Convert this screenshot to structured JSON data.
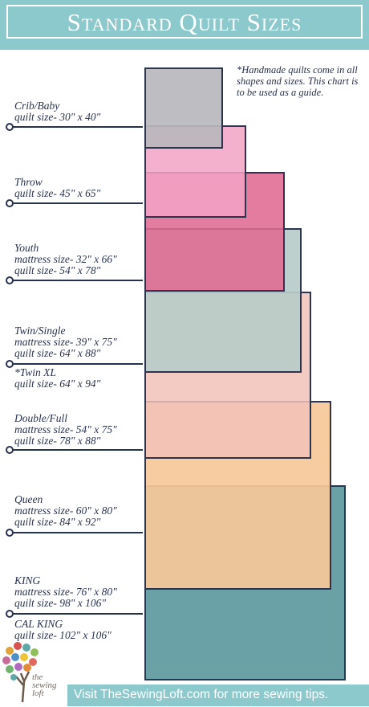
{
  "header": {
    "title": "Standard Quilt Sizes"
  },
  "note": "*Handmade quilts come in all shapes and sizes. This chart is to be used as a guide.",
  "sizes": [
    {
      "name": "Crib/Baby",
      "quilt": "quilt size- 30\" x 40\"",
      "color": "#b8b8bd"
    },
    {
      "name": "Throw",
      "quilt": "quilt size- 45\" x 65\"",
      "color": "#f2a3c5"
    },
    {
      "name": "Youth",
      "mattress": "mattress size- 32\" x 66\"",
      "quilt": "quilt size- 54\" x 78\"",
      "color": "#e06a92"
    },
    {
      "name": "Twin/Single",
      "mattress": "mattress size- 39\" x 75\"",
      "quilt": "quilt size- 64\" x 88\"",
      "extra_name": "*Twin XL",
      "extra_quilt": "quilt size- 64\" x 94\"",
      "color": "#b9ccc9"
    },
    {
      "name": "Double/Full",
      "mattress": "mattress size- 54\"  x  75\"",
      "quilt": "quilt size- 78\" x 88\"",
      "color": "#f2c2b9"
    },
    {
      "name": "Queen",
      "mattress": "mattress size- 60\" x 80\"",
      "quilt": "quilt size- 84\" x 92\"",
      "color": "#f7c89a"
    },
    {
      "name": "KING",
      "mattress": "mattress size- 76\" x 80\"",
      "quilt": "quilt size- 98\" x 106\"",
      "extra_name": "CAL KING",
      "extra_quilt": "quilt size- 102\" x 106\"",
      "color": "#6aa1a6"
    }
  ],
  "footer": {
    "text": "Visit TheSewingLoft.com for more sewing tips."
  },
  "logo": {
    "line1": "the",
    "line2": "sewing",
    "line3": "loft"
  }
}
